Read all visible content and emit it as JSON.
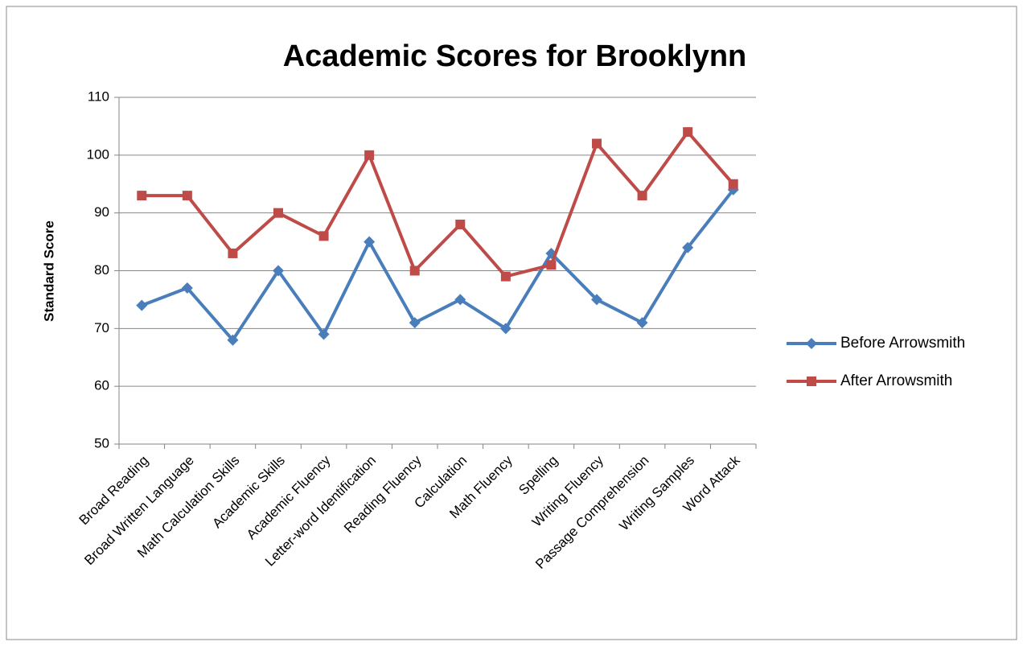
{
  "chart_data": {
    "type": "line",
    "title": "Academic Scores for Brooklynn",
    "y_label": "Standard Score",
    "categories": [
      "Broad Reading",
      "Broad Written Language",
      "Math Calculation Skills",
      "Academic Skills",
      "Academic Fluency",
      "Letter-word Identification",
      "Reading Fluency",
      "Calculation",
      "Math Fluency",
      "Spelling",
      "Writing Fluency",
      "Passage Comprehension",
      "Writing Samples",
      "Word Attack"
    ],
    "series": [
      {
        "name": "Before Arrowsmith",
        "color": "#4a7ebb",
        "marker": "diamond",
        "values": [
          74,
          77,
          68,
          80,
          69,
          85,
          71,
          75,
          70,
          83,
          75,
          71,
          84,
          94
        ]
      },
      {
        "name": "After Arrowsmith",
        "color": "#be4b48",
        "marker": "square",
        "values": [
          93,
          93,
          83,
          90,
          86,
          100,
          80,
          88,
          79,
          81,
          102,
          93,
          104,
          95
        ]
      }
    ],
    "ylim": [
      50,
      110
    ],
    "yticks": [
      50,
      60,
      70,
      80,
      90,
      100,
      110
    ],
    "grid": true,
    "legend": "right"
  }
}
